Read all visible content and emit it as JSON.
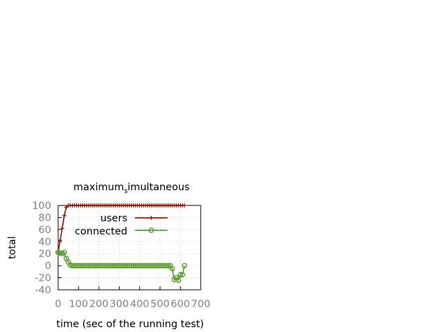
{
  "chart_data": {
    "type": "line",
    "title_main": "maximum",
    "title_sub": "s",
    "title_rest": "imultaneous",
    "xlabel": "time (sec of the running test)",
    "ylabel": "total",
    "xlim": [
      0,
      700
    ],
    "ylim": [
      -40,
      100
    ],
    "xticks": [
      "0",
      "100",
      "200",
      "300",
      "400",
      "500",
      "600",
      "700"
    ],
    "yticks": [
      "100",
      "80",
      "60",
      "40",
      "20",
      "0",
      "-20",
      "-40"
    ],
    "grid": true,
    "legend_position": "top-right",
    "series": [
      {
        "name": "users",
        "color": "#8b1a0e",
        "marker": "plus",
        "x": [
          0,
          10,
          20,
          30,
          40,
          50,
          60,
          70,
          80,
          90,
          100,
          110,
          120,
          130,
          140,
          150,
          160,
          170,
          180,
          190,
          200,
          210,
          220,
          230,
          240,
          250,
          260,
          270,
          280,
          290,
          300,
          310,
          320,
          330,
          340,
          350,
          360,
          370,
          380,
          390,
          400,
          410,
          420,
          430,
          440,
          450,
          460,
          470,
          480,
          490,
          500,
          510,
          520,
          530,
          540,
          550,
          560,
          570,
          580,
          590,
          600,
          610,
          620
        ],
        "y": [
          22,
          42,
          62,
          83,
          97,
          100,
          100,
          100,
          100,
          100,
          100,
          100,
          100,
          100,
          100,
          100,
          100,
          100,
          100,
          100,
          100,
          100,
          100,
          100,
          100,
          100,
          100,
          100,
          100,
          100,
          100,
          100,
          100,
          100,
          100,
          100,
          100,
          100,
          100,
          100,
          100,
          100,
          100,
          100,
          100,
          100,
          100,
          100,
          100,
          100,
          100,
          100,
          100,
          100,
          100,
          100,
          100,
          100,
          100,
          100,
          100,
          100,
          100
        ]
      },
      {
        "name": "connected",
        "color": "#5e9c36",
        "marker": "circle",
        "x": [
          0,
          10,
          20,
          30,
          40,
          50,
          60,
          70,
          80,
          90,
          100,
          110,
          120,
          130,
          140,
          150,
          160,
          170,
          180,
          190,
          200,
          210,
          220,
          230,
          240,
          250,
          260,
          270,
          280,
          290,
          300,
          310,
          320,
          330,
          340,
          350,
          360,
          370,
          380,
          390,
          400,
          410,
          420,
          430,
          440,
          450,
          460,
          470,
          480,
          490,
          500,
          510,
          520,
          530,
          540,
          550,
          560,
          570,
          580,
          590,
          600,
          610,
          620
        ],
        "y": [
          22,
          21,
          20,
          22,
          12,
          6,
          1,
          0,
          0,
          0,
          0,
          0,
          0,
          0,
          0,
          0,
          0,
          0,
          0,
          0,
          0,
          0,
          0,
          0,
          0,
          0,
          0,
          0,
          0,
          0,
          0,
          0,
          0,
          0,
          0,
          0,
          0,
          0,
          0,
          0,
          0,
          0,
          0,
          0,
          0,
          0,
          0,
          0,
          0,
          0,
          0,
          0,
          0,
          0,
          0,
          0,
          -5,
          -23,
          -20,
          -24,
          -15,
          -15,
          0
        ]
      }
    ]
  }
}
